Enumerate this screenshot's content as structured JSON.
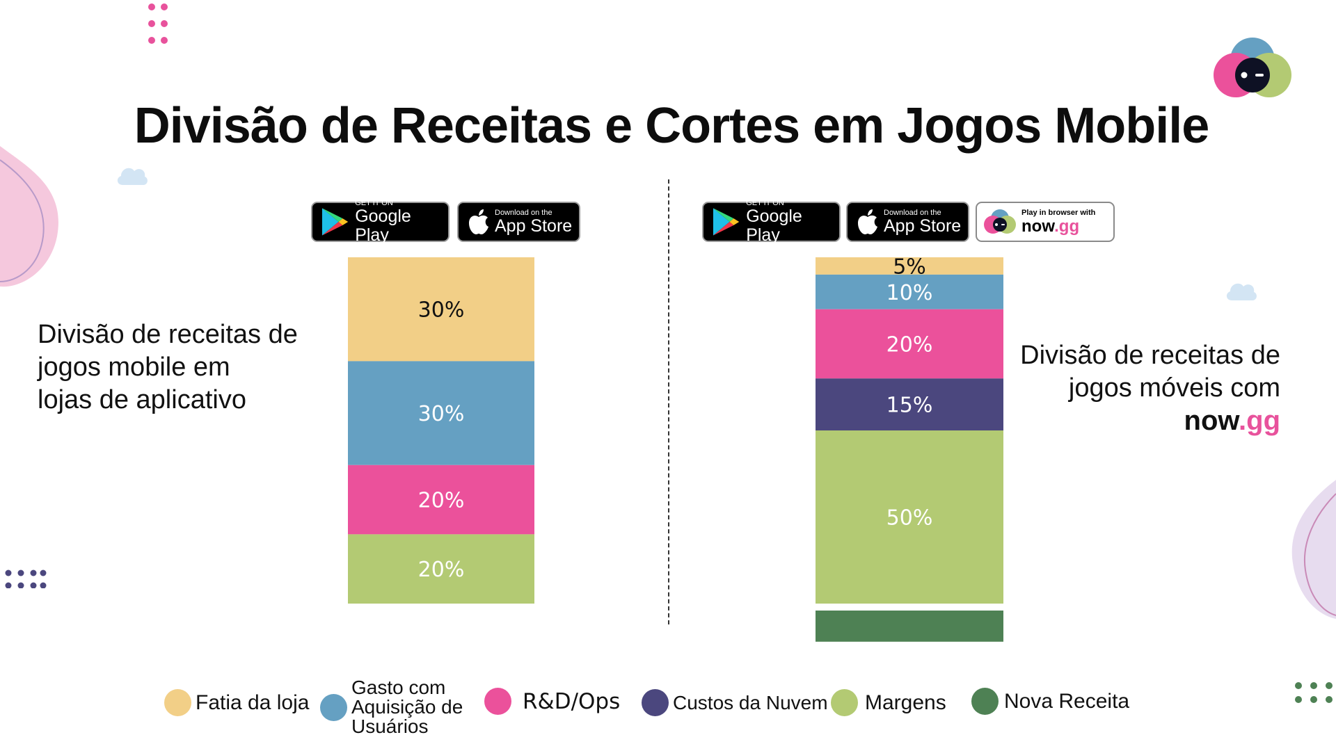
{
  "title": "Divisão de Receitas e Cortes em Jogos Mobile",
  "left_panel": {
    "text_lines": [
      "Divisão de receitas de",
      "jogos mobile em",
      "lojas de aplicativo"
    ],
    "badges": [
      {
        "small": "GET IT ON",
        "big": "Google Play",
        "icon": "google-play-icon"
      },
      {
        "small": "Download on the",
        "big": "App Store",
        "icon": "apple-icon"
      }
    ]
  },
  "right_panel": {
    "text_lines": [
      "Divisão de receitas de",
      "jogos móveis com"
    ],
    "brand": {
      "main": "now",
      "accent": ".gg"
    },
    "badges": [
      {
        "small": "GET IT ON",
        "big": "Google Play",
        "icon": "google-play-icon"
      },
      {
        "small": "Download on the",
        "big": "App Store",
        "icon": "apple-icon"
      },
      {
        "small": "Play in browser with",
        "big_main": "now",
        "big_accent": ".gg",
        "icon": "nowgg-logo-icon"
      }
    ]
  },
  "colors": {
    "store_cut": "#f2cf87",
    "user_acquisition": "#65a0c2",
    "rd_ops": "#eb519b",
    "cloud_costs": "#4b477e",
    "margins": "#b3ca73",
    "new_revenue": "#4e8154",
    "brand_pink": "#e8529c"
  },
  "chart_data": [
    {
      "type": "bar",
      "stacked": true,
      "categories": [
        "Divisão de receitas de jogos mobile em lojas de aplicativo"
      ],
      "series": [
        {
          "name": "Fatia da loja",
          "values": [
            30
          ],
          "label": "30%"
        },
        {
          "name": "Gasto com Aquisição de Usuários",
          "values": [
            30
          ],
          "label": "30%"
        },
        {
          "name": "R&D/Ops",
          "values": [
            20
          ],
          "label": "20%"
        },
        {
          "name": "Margens",
          "values": [
            20
          ],
          "label": "20%"
        }
      ]
    },
    {
      "type": "bar",
      "stacked": true,
      "categories": [
        "Divisão de receitas de jogos móveis com now.gg"
      ],
      "series": [
        {
          "name": "Fatia da loja",
          "values": [
            5
          ],
          "label": "5%"
        },
        {
          "name": "Gasto com Aquisição de Usuários",
          "values": [
            10
          ],
          "label": "10%"
        },
        {
          "name": "R&D/Ops",
          "values": [
            20
          ],
          "label": "20%"
        },
        {
          "name": "Custos da Nuvem",
          "values": [
            15
          ],
          "label": "15%"
        },
        {
          "name": "Margens",
          "values": [
            50
          ],
          "label": "50%"
        },
        {
          "name": "Nova Receita",
          "values": [
            9
          ],
          "label": ""
        }
      ]
    }
  ],
  "legend": [
    {
      "label": "Fatia da loja",
      "color": "#f2cf87"
    },
    {
      "label": "Gasto com Aquisição de Usuários",
      "color": "#65a0c2"
    },
    {
      "label": "R&D/Ops",
      "color": "#eb519b"
    },
    {
      "label": "Custos da Nuvem",
      "color": "#4b477e"
    },
    {
      "label": "Margens",
      "color": "#b3ca73"
    },
    {
      "label": "Nova Receita",
      "color": "#4e8154"
    }
  ]
}
